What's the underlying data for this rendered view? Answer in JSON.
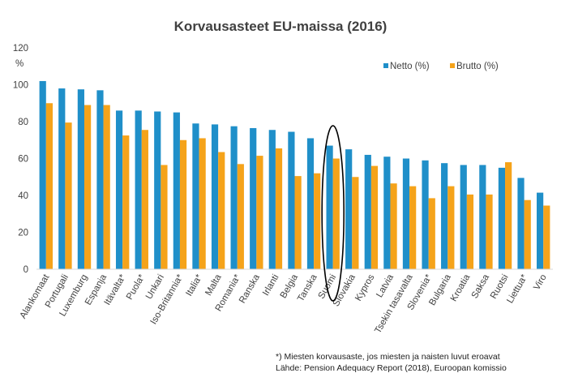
{
  "chart_data": {
    "type": "bar",
    "title": "Korvausasteet EU-maissa (2016)",
    "ylabel": "%",
    "ylim": [
      0,
      120
    ],
    "yticks": [
      0,
      20,
      40,
      60,
      80,
      100,
      120
    ],
    "grid": false,
    "legend_position": "top-right",
    "categories": [
      "Alankomaat",
      "Portugali",
      "Luxemburg",
      "Espanja",
      "Itävalta*",
      "Puola*",
      "Unkari",
      "Iso-Britannia*",
      "Italia*",
      "Malta",
      "Romania*",
      "Ranska",
      "Irlanti",
      "Belgia",
      "Tanska",
      "Suomi",
      "Slovakia",
      "Kypros",
      "Latvia",
      "Tsekin tasavalta",
      "Slovenia*",
      "Bulgaria",
      "Kroatia",
      "Saksa",
      "Ruotsi",
      "Liettua*",
      "Viro"
    ],
    "series": [
      {
        "name": "Netto (%)",
        "color": "#1f8fc9",
        "values": [
          102,
          98,
          97.5,
          97,
          86,
          86,
          85.5,
          85,
          79,
          78.5,
          77.5,
          76.5,
          75.5,
          74.5,
          71,
          67,
          65,
          62,
          61,
          60,
          59,
          57.5,
          56.5,
          56.5,
          55,
          49.5,
          41.5
        ]
      },
      {
        "name": "Brutto (%)",
        "color": "#f5a31a",
        "values": [
          90,
          79.5,
          89,
          89,
          72.5,
          75.5,
          56.5,
          70,
          71,
          63.5,
          57,
          61.5,
          65.5,
          50.5,
          52,
          60,
          50,
          56,
          46.5,
          45,
          38.5,
          45,
          40.5,
          40.5,
          58,
          37.5,
          34.5
        ]
      }
    ],
    "highlight": "Suomi"
  },
  "footnote": {
    "line1": "*) Miesten korvausaste, jos miesten ja naisten luvut eroavat",
    "line2": "Lähde: Pension Adequacy Report (2018), Euroopan komissio"
  }
}
